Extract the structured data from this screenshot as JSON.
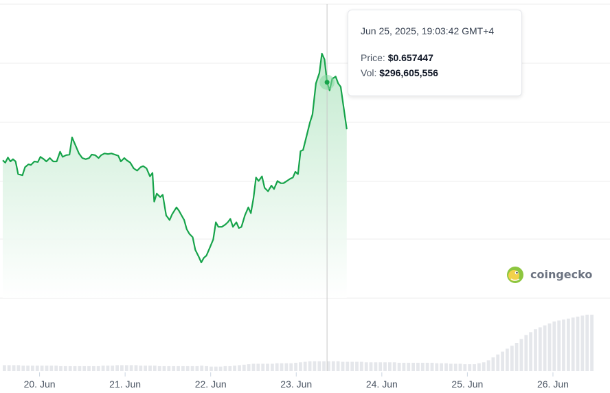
{
  "tooltip": {
    "timestamp": "Jun 25, 2025, 19:03:42 GMT+4",
    "price_label": "Price:",
    "price_value": "$0.657447",
    "vol_label": "Vol:",
    "vol_value": "$296,605,556"
  },
  "brand": {
    "name": "coingecko",
    "icon": "coingecko-gecko-icon"
  },
  "colors": {
    "line": "#16a34a",
    "area_top": "#bfe9cc",
    "volume": "#e5e7eb",
    "grid": "#ececec",
    "crosshair": "#c8c8c8",
    "marker": "#86d9a0"
  },
  "chart_data": {
    "type": "line",
    "title": "",
    "xlabel": "",
    "ylabel": "",
    "x_ticks": [
      "20. Jun",
      "21. Jun",
      "22. Jun",
      "23. Jun",
      "24. Jun",
      "25. Jun",
      "26. Jun"
    ],
    "x_range_days": [
      19.57,
      26.49
    ],
    "grid": true,
    "series": [
      {
        "kind": "price",
        "points": [
          [
            19.57,
            0.5645
          ],
          [
            19.6,
            0.5625
          ],
          [
            19.63,
            0.567
          ],
          [
            19.66,
            0.5635
          ],
          [
            19.69,
            0.5655
          ],
          [
            19.72,
            0.5635
          ],
          [
            19.75,
            0.5525
          ],
          [
            19.8,
            0.5515
          ],
          [
            19.83,
            0.5585
          ],
          [
            19.87,
            0.561
          ],
          [
            19.9,
            0.5605
          ],
          [
            19.94,
            0.5635
          ],
          [
            19.98,
            0.563
          ],
          [
            20.01,
            0.5675
          ],
          [
            20.05,
            0.5655
          ],
          [
            20.08,
            0.5635
          ],
          [
            20.12,
            0.5665
          ],
          [
            20.16,
            0.5635
          ],
          [
            20.2,
            0.5635
          ],
          [
            20.24,
            0.572
          ],
          [
            20.27,
            0.5675
          ],
          [
            20.31,
            0.569
          ],
          [
            20.35,
            0.5695
          ],
          [
            20.38,
            0.5845
          ],
          [
            20.42,
            0.5775
          ],
          [
            20.46,
            0.5705
          ],
          [
            20.5,
            0.5665
          ],
          [
            20.54,
            0.5655
          ],
          [
            20.58,
            0.5665
          ],
          [
            20.61,
            0.5695
          ],
          [
            20.65,
            0.569
          ],
          [
            20.69,
            0.5665
          ],
          [
            20.72,
            0.569
          ],
          [
            20.76,
            0.5705
          ],
          [
            20.8,
            0.57
          ],
          [
            20.84,
            0.5705
          ],
          [
            20.88,
            0.5695
          ],
          [
            20.92,
            0.5685
          ],
          [
            20.95,
            0.5635
          ],
          [
            20.99,
            0.5665
          ],
          [
            21.02,
            0.5645
          ],
          [
            21.06,
            0.5625
          ],
          [
            21.1,
            0.5575
          ],
          [
            21.14,
            0.5555
          ],
          [
            21.18,
            0.5585
          ],
          [
            21.21,
            0.5595
          ],
          [
            21.25,
            0.5575
          ],
          [
            21.29,
            0.5505
          ],
          [
            21.32,
            0.5535
          ],
          [
            21.34,
            0.5285
          ],
          [
            21.37,
            0.5355
          ],
          [
            21.41,
            0.5325
          ],
          [
            21.44,
            0.5345
          ],
          [
            21.48,
            0.5165
          ],
          [
            21.52,
            0.5125
          ],
          [
            21.55,
            0.5175
          ],
          [
            21.6,
            0.5235
          ],
          [
            21.63,
            0.5205
          ],
          [
            21.66,
            0.5165
          ],
          [
            21.69,
            0.5125
          ],
          [
            21.72,
            0.5045
          ],
          [
            21.75,
            0.5005
          ],
          [
            21.79,
            0.4975
          ],
          [
            21.82,
            0.4865
          ],
          [
            21.86,
            0.4805
          ],
          [
            21.89,
            0.4755
          ],
          [
            21.92,
            0.4795
          ],
          [
            21.95,
            0.4815
          ],
          [
            21.99,
            0.4885
          ],
          [
            22.03,
            0.4955
          ],
          [
            22.06,
            0.5105
          ],
          [
            22.09,
            0.5065
          ],
          [
            22.13,
            0.5065
          ],
          [
            22.17,
            0.5085
          ],
          [
            22.2,
            0.5105
          ],
          [
            22.23,
            0.5135
          ],
          [
            22.26,
            0.5065
          ],
          [
            22.3,
            0.5105
          ],
          [
            22.33,
            0.5055
          ],
          [
            22.36,
            0.5065
          ],
          [
            22.4,
            0.5165
          ],
          [
            22.44,
            0.5235
          ],
          [
            22.47,
            0.5185
          ],
          [
            22.5,
            0.5315
          ],
          [
            22.53,
            0.5495
          ],
          [
            22.56,
            0.5465
          ],
          [
            22.6,
            0.5505
          ],
          [
            22.63,
            0.5405
          ],
          [
            22.67,
            0.5375
          ],
          [
            22.71,
            0.5425
          ],
          [
            22.74,
            0.5395
          ],
          [
            22.78,
            0.5465
          ],
          [
            22.82,
            0.5445
          ],
          [
            22.85,
            0.5445
          ],
          [
            22.89,
            0.5465
          ],
          [
            22.93,
            0.5485
          ],
          [
            22.96,
            0.5495
          ],
          [
            22.99,
            0.5545
          ],
          [
            23.02,
            0.5525
          ],
          [
            23.05,
            0.5725
          ],
          [
            23.08,
            0.5735
          ],
          [
            23.12,
            0.5855
          ],
          [
            23.16,
            0.5975
          ],
          [
            23.19,
            0.6045
          ],
          [
            23.23,
            0.6315
          ],
          [
            23.27,
            0.6405
          ],
          [
            23.3,
            0.6575
          ],
          [
            23.33,
            0.6525
          ],
          [
            23.36,
            0.6325
          ],
          [
            23.39,
            0.6255
          ],
          [
            23.42,
            0.6355
          ],
          [
            23.46,
            0.6375
          ],
          [
            23.49,
            0.6315
          ],
          [
            23.52,
            0.6285
          ],
          [
            23.56,
            0.6075
          ],
          [
            23.59,
            0.5915
          ]
        ]
      }
    ],
    "volume": [
      0.06,
      0.06,
      0.06,
      0.06,
      0.055,
      0.055,
      0.055,
      0.055,
      0.055,
      0.055,
      0.055,
      0.055,
      0.05,
      0.05,
      0.05,
      0.05,
      0.05,
      0.05,
      0.05,
      0.05,
      0.05,
      0.055,
      0.055,
      0.055,
      0.06,
      0.06,
      0.06,
      0.06,
      0.06,
      0.055,
      0.055,
      0.055,
      0.055,
      0.05,
      0.05,
      0.05,
      0.05,
      0.05,
      0.05,
      0.05,
      0.05,
      0.05,
      0.055,
      0.05,
      0.045,
      0.045,
      0.045,
      0.05,
      0.05,
      0.055,
      0.06,
      0.065,
      0.07,
      0.075,
      0.075,
      0.075,
      0.075,
      0.075,
      0.08,
      0.08,
      0.08,
      0.08,
      0.085,
      0.09,
      0.095,
      0.1,
      0.1,
      0.1,
      0.1,
      0.1,
      0.1,
      0.1,
      0.095,
      0.095,
      0.095,
      0.095,
      0.095,
      0.09,
      0.09,
      0.09,
      0.09,
      0.09,
      0.09,
      0.09,
      0.085,
      0.085,
      0.085,
      0.085,
      0.085,
      0.085,
      0.085,
      0.085,
      0.08,
      0.08,
      0.08,
      0.075,
      0.075,
      0.075,
      0.07,
      0.07,
      0.07,
      0.08,
      0.09,
      0.11,
      0.14,
      0.17,
      0.2,
      0.23,
      0.26,
      0.29,
      0.33,
      0.37,
      0.4,
      0.43,
      0.45,
      0.47,
      0.49,
      0.51,
      0.52,
      0.53,
      0.54,
      0.55,
      0.56,
      0.57,
      0.58,
      0.58
    ],
    "hover": {
      "index": 108
    }
  }
}
